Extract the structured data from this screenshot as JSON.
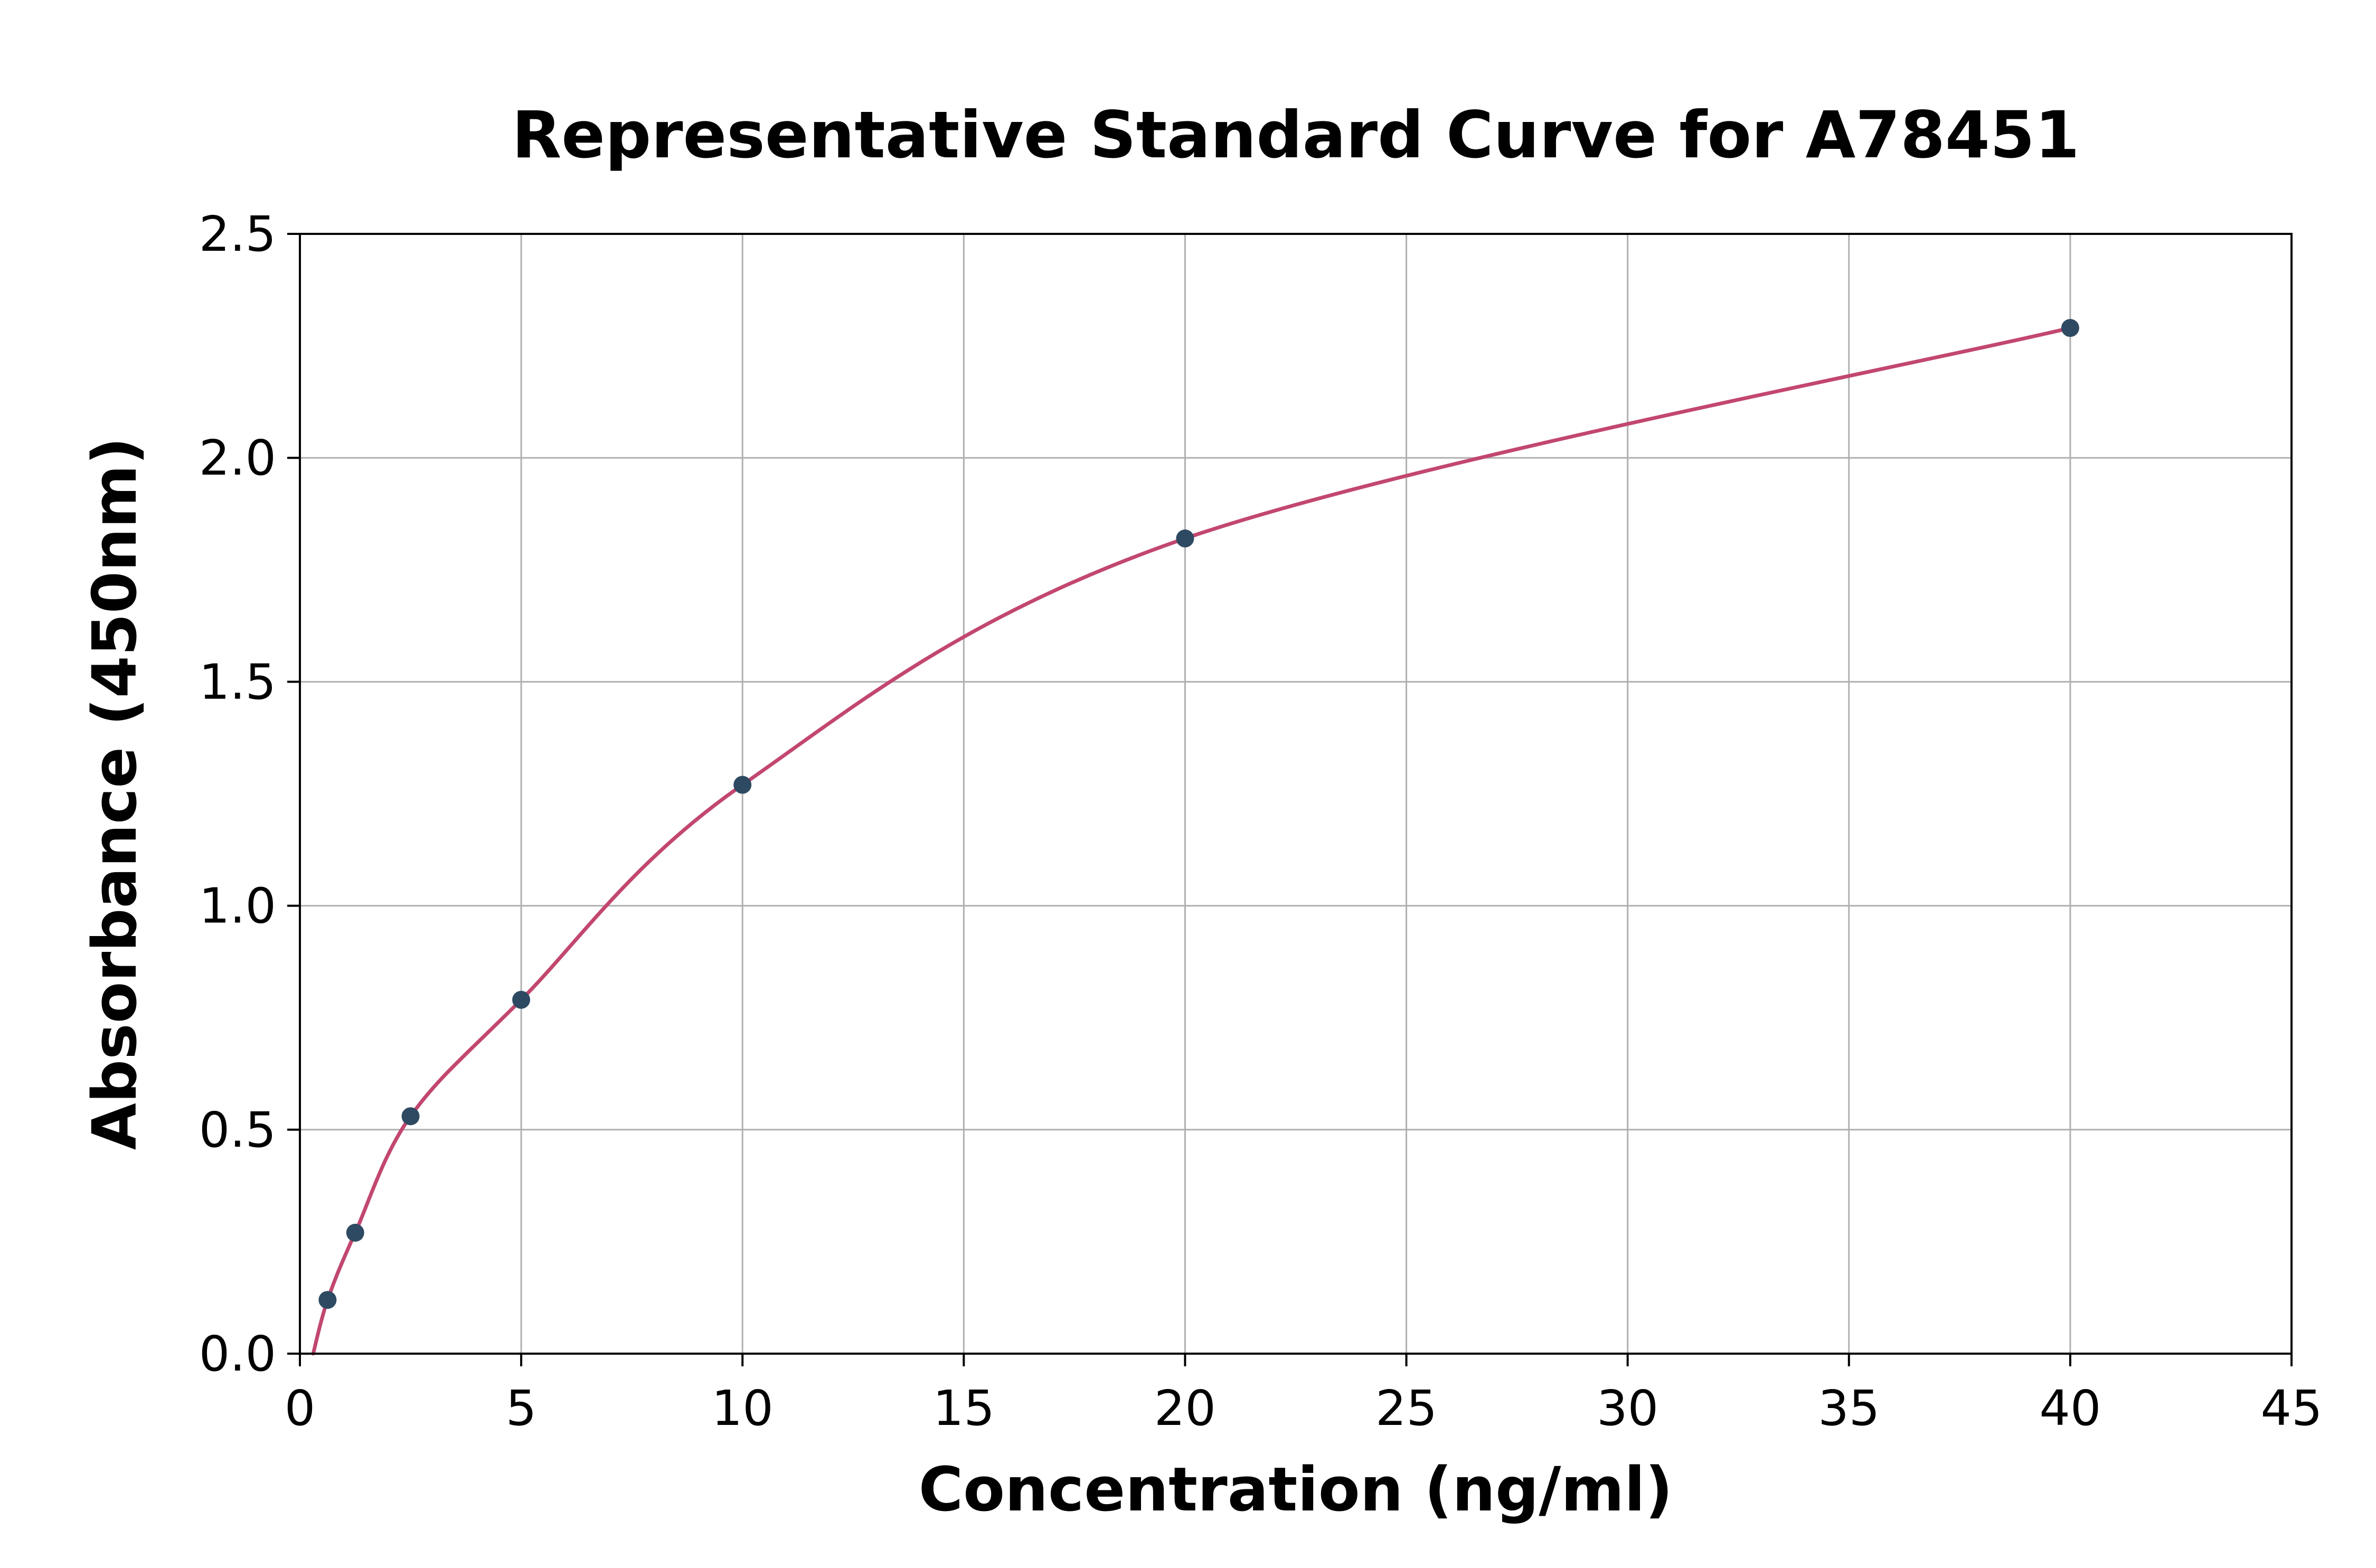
{
  "page": {
    "background": "#ffffff"
  },
  "chart_data": {
    "type": "scatter",
    "title": "Representative Standard Curve for A78451",
    "xlabel": "Concentration (ng/ml)",
    "ylabel": "Absorbance (450nm)",
    "xlim": [
      0,
      45
    ],
    "ylim": [
      0,
      2.5
    ],
    "xticks": [
      0,
      5,
      10,
      15,
      20,
      25,
      30,
      35,
      40,
      45
    ],
    "xtick_labels": [
      "0",
      "5",
      "10",
      "15",
      "20",
      "25",
      "30",
      "35",
      "40",
      "45"
    ],
    "yticks": [
      0.0,
      0.5,
      1.0,
      1.5,
      2.0,
      2.5
    ],
    "ytick_labels": [
      "0.0",
      "0.5",
      "1.0",
      "1.5",
      "2.0",
      "2.5"
    ],
    "grid": true,
    "legend": "none",
    "points": [
      {
        "x": 0.625,
        "y": 0.12
      },
      {
        "x": 1.25,
        "y": 0.27
      },
      {
        "x": 2.5,
        "y": 0.53
      },
      {
        "x": 5,
        "y": 0.79
      },
      {
        "x": 10,
        "y": 1.27
      },
      {
        "x": 20,
        "y": 1.82
      },
      {
        "x": 40,
        "y": 2.29
      }
    ],
    "fit_curve_anchors": [
      {
        "x": 0.3,
        "y": 0.0
      },
      {
        "x": 0.625,
        "y": 0.12
      },
      {
        "x": 1.25,
        "y": 0.27
      },
      {
        "x": 2.5,
        "y": 0.53
      },
      {
        "x": 5,
        "y": 0.79
      },
      {
        "x": 10,
        "y": 1.27
      },
      {
        "x": 20,
        "y": 1.82
      },
      {
        "x": 40,
        "y": 2.29
      }
    ],
    "colors": {
      "curve": "#c2476e",
      "points": "#2e4a62",
      "grid": "#b0b0b0",
      "spine": "#000000",
      "background": "#ffffff"
    }
  }
}
